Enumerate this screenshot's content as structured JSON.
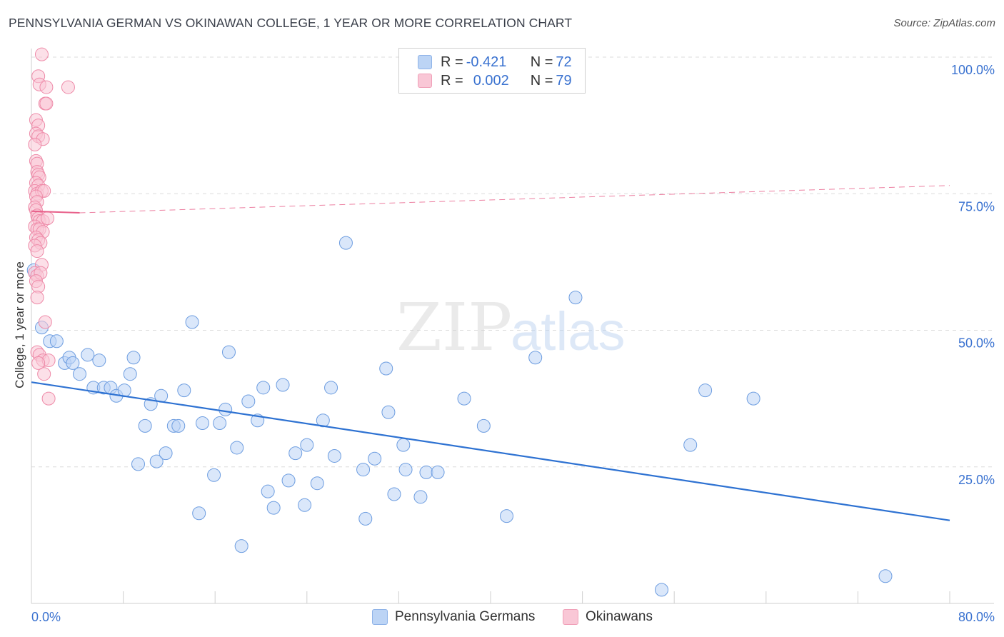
{
  "title": "PENNSYLVANIA GERMAN VS OKINAWAN COLLEGE, 1 YEAR OR MORE CORRELATION CHART",
  "source": "Source: ZipAtlas.com",
  "watermark": {
    "zip": "ZIP",
    "atlas": "atlas"
  },
  "legend": {
    "rows": [
      {
        "r_label": "R = ",
        "r_value": "-0.421",
        "n_label": "N = ",
        "n_value": "72",
        "color": "#a9c8f2"
      },
      {
        "r_label": "R = ",
        "r_value": "0.002",
        "n_label": "N = ",
        "n_value": "79",
        "color": "#f7b7c9"
      }
    ]
  },
  "chart_data": {
    "type": "scatter",
    "title": "PENNSYLVANIA GERMAN VS OKINAWAN COLLEGE, 1 YEAR OR MORE CORRELATION CHART",
    "xlabel": "",
    "ylabel": "College, 1 year or more",
    "xlim": [
      0,
      80
    ],
    "ylim": [
      0,
      100
    ],
    "x_tick_labels": [
      "0.0%",
      "80.0%"
    ],
    "y_tick_labels": [
      "100.0%",
      "75.0%",
      "50.0%",
      "25.0%"
    ],
    "y_ticks": [
      100,
      75,
      50,
      25
    ],
    "grid": true,
    "legend_position": "top-center",
    "series": [
      {
        "name": "Pennsylvania Germans",
        "color": "#6d9de0",
        "fill": "#bcd4f5",
        "trend": {
          "x": [
            0,
            80
          ],
          "y": [
            40.5,
            15.2
          ],
          "style": "solid"
        },
        "points": [
          [
            0.2,
            61
          ],
          [
            0.9,
            50.5
          ],
          [
            1.6,
            48
          ],
          [
            2.2,
            48
          ],
          [
            2.9,
            44
          ],
          [
            3.3,
            45
          ],
          [
            3.6,
            44
          ],
          [
            4.2,
            42
          ],
          [
            4.9,
            45.5
          ],
          [
            5.4,
            39.5
          ],
          [
            5.9,
            44.5
          ],
          [
            6.3,
            39.5
          ],
          [
            6.9,
            39.5
          ],
          [
            7.4,
            38
          ],
          [
            8.1,
            39
          ],
          [
            8.6,
            42
          ],
          [
            8.9,
            45
          ],
          [
            9.3,
            25.5
          ],
          [
            9.9,
            32.5
          ],
          [
            10.4,
            36.5
          ],
          [
            10.9,
            26
          ],
          [
            11.3,
            38
          ],
          [
            11.7,
            27.5
          ],
          [
            12.4,
            32.5
          ],
          [
            12.8,
            32.5
          ],
          [
            13.3,
            39
          ],
          [
            14.0,
            51.5
          ],
          [
            14.6,
            16.5
          ],
          [
            14.9,
            33
          ],
          [
            15.9,
            23.5
          ],
          [
            16.4,
            33
          ],
          [
            16.9,
            35.5
          ],
          [
            17.2,
            46
          ],
          [
            17.9,
            28.5
          ],
          [
            18.3,
            10.5
          ],
          [
            18.9,
            37
          ],
          [
            19.7,
            33.5
          ],
          [
            20.2,
            39.5
          ],
          [
            20.6,
            20.5
          ],
          [
            21.1,
            17.5
          ],
          [
            21.9,
            40
          ],
          [
            22.4,
            22.5
          ],
          [
            23.0,
            27.5
          ],
          [
            23.8,
            18
          ],
          [
            24.0,
            29
          ],
          [
            24.9,
            22
          ],
          [
            25.4,
            33.5
          ],
          [
            26.1,
            39.5
          ],
          [
            26.4,
            27
          ],
          [
            27.4,
            66
          ],
          [
            28.9,
            24.5
          ],
          [
            29.1,
            15.5
          ],
          [
            29.9,
            26.5
          ],
          [
            30.9,
            43
          ],
          [
            31.1,
            35
          ],
          [
            31.6,
            20
          ],
          [
            32.4,
            29
          ],
          [
            32.6,
            24.5
          ],
          [
            33.9,
            19.5
          ],
          [
            34.4,
            24
          ],
          [
            35.4,
            24
          ],
          [
            37.7,
            37.5
          ],
          [
            39.4,
            32.5
          ],
          [
            41.4,
            16
          ],
          [
            43.9,
            45
          ],
          [
            47.4,
            56
          ],
          [
            54.9,
            2.5
          ],
          [
            57.4,
            29
          ],
          [
            58.7,
            39
          ],
          [
            62.9,
            37.5
          ],
          [
            74.4,
            5
          ]
        ]
      },
      {
        "name": "Okinawans",
        "color": "#ee8aa8",
        "fill": "#f9c7d6",
        "trend": {
          "x": [
            0,
            4.2,
            80
          ],
          "y": [
            71.8,
            71.5,
            76.5
          ],
          "style": "solid-then-dashed"
        },
        "points": [
          [
            0.9,
            100.5
          ],
          [
            0.6,
            96.5
          ],
          [
            0.7,
            95
          ],
          [
            1.3,
            94.5
          ],
          [
            3.2,
            94.5
          ],
          [
            1.2,
            91.5
          ],
          [
            1.3,
            91.5
          ],
          [
            0.4,
            88.5
          ],
          [
            0.6,
            87.5
          ],
          [
            0.4,
            86
          ],
          [
            0.6,
            85.5
          ],
          [
            1.0,
            85
          ],
          [
            0.3,
            84
          ],
          [
            0.4,
            81
          ],
          [
            0.5,
            80.5
          ],
          [
            0.5,
            79
          ],
          [
            0.6,
            78.5
          ],
          [
            0.7,
            78
          ],
          [
            0.4,
            77
          ],
          [
            0.6,
            76.5
          ],
          [
            0.3,
            75.5
          ],
          [
            0.5,
            75
          ],
          [
            0.9,
            75.5
          ],
          [
            1.1,
            75.5
          ],
          [
            0.4,
            74.5
          ],
          [
            0.5,
            73.5
          ],
          [
            0.3,
            72.5
          ],
          [
            0.4,
            72
          ],
          [
            0.5,
            71
          ],
          [
            0.6,
            70.5
          ],
          [
            0.7,
            70
          ],
          [
            1.0,
            70
          ],
          [
            1.4,
            70.5
          ],
          [
            0.3,
            69
          ],
          [
            0.5,
            68.5
          ],
          [
            0.7,
            68.5
          ],
          [
            1.0,
            68
          ],
          [
            0.4,
            67
          ],
          [
            0.6,
            66.5
          ],
          [
            0.8,
            66
          ],
          [
            0.3,
            65.5
          ],
          [
            0.5,
            64.5
          ],
          [
            0.9,
            62
          ],
          [
            0.3,
            60.5
          ],
          [
            0.5,
            60
          ],
          [
            0.8,
            60.5
          ],
          [
            0.4,
            59
          ],
          [
            0.6,
            58
          ],
          [
            0.5,
            56
          ],
          [
            1.2,
            51.5
          ],
          [
            0.5,
            46
          ],
          [
            0.7,
            45.5
          ],
          [
            1.0,
            44.5
          ],
          [
            1.5,
            44.5
          ],
          [
            0.6,
            44
          ],
          [
            1.1,
            42
          ],
          [
            1.5,
            37.5
          ]
        ]
      }
    ]
  }
}
